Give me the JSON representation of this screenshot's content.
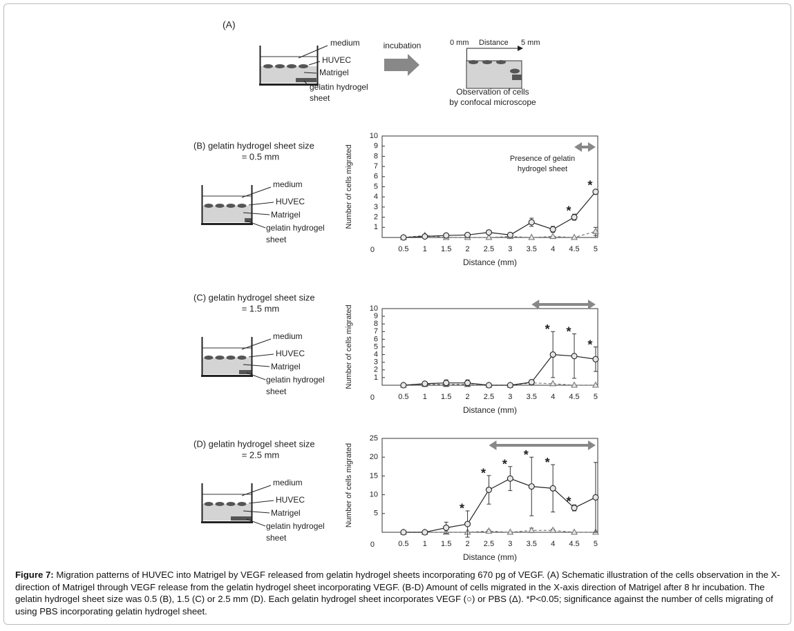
{
  "panel_A": {
    "label": "(A)",
    "beaker_labels": [
      "medium",
      "HUVEC",
      "Matrigel",
      "gelatin hydrogel",
      "sheet"
    ],
    "step": "incubation",
    "scale": [
      "0 mm",
      "Distance",
      "5 mm"
    ],
    "observation": [
      "Observation of cells",
      "by confocal microscope"
    ]
  },
  "schematics": [
    {
      "labels": [
        "medium",
        "HUVEC",
        "Matrigel",
        "gelatin hydrogel",
        "sheet"
      ]
    },
    {
      "labels": [
        "medium",
        "HUVEC",
        "Matrigel",
        "gelatin hydrogel",
        "sheet"
      ]
    },
    {
      "labels": [
        "medium",
        "HUVEC",
        "Matrigel",
        "gelatin hydrogel",
        "sheet"
      ]
    }
  ],
  "chart_data": [
    {
      "type": "line",
      "title": [
        "(B) gelatin hydrogel sheet size",
        "= 0.5 mm"
      ],
      "x_label": "Distance (mm)",
      "y_label": "Number of cells migrated",
      "x": [
        0.5,
        1,
        1.5,
        2,
        2.5,
        3,
        3.5,
        4,
        4.5,
        5
      ],
      "xlim": [
        0,
        5.05
      ],
      "xticks": [
        0.5,
        1,
        1.5,
        2,
        2.5,
        3,
        3.5,
        4,
        4.5,
        5
      ],
      "ylim": [
        0,
        10
      ],
      "yticks": [
        0,
        1,
        2,
        3,
        4,
        5,
        6,
        7,
        8,
        9,
        10
      ],
      "series": [
        {
          "color": "#222222",
          "marker": "circle",
          "linestyle": "solid",
          "values": [
            0,
            0.1,
            0.2,
            0.25,
            0.5,
            0.25,
            1.5,
            0.8,
            2.0,
            4.5
          ],
          "errors": [
            0,
            0.1,
            0.1,
            0.1,
            0.2,
            0.1,
            0.4,
            0.3,
            0.3,
            0.2
          ]
        },
        {
          "color": "#777777",
          "marker": "triangle",
          "linestyle": "dashed",
          "values": [
            0,
            0.2,
            0,
            0,
            0,
            0.1,
            0,
            0.1,
            0,
            0.6
          ],
          "errors": [
            0,
            0.1,
            0,
            0,
            0,
            0,
            0,
            0,
            0,
            0.4
          ]
        }
      ],
      "significance": {
        "label": "*",
        "x": [
          4.5,
          5
        ]
      },
      "sheet_range": [
        4.5,
        5
      ],
      "annotation": [
        "Presence of gelatin",
        "hydrogel sheet"
      ]
    },
    {
      "type": "line",
      "title": [
        "(C) gelatin hydrogel sheet size",
        "= 1.5 mm"
      ],
      "x_label": "Distance (mm)",
      "y_label": "Number of cells migrated",
      "x": [
        0.5,
        1,
        1.5,
        2,
        2.5,
        3,
        3.5,
        4,
        4.5,
        5
      ],
      "xlim": [
        0,
        5.05
      ],
      "xticks": [
        0.5,
        1,
        1.5,
        2,
        2.5,
        3,
        3.5,
        4,
        4.5,
        5
      ],
      "ylim": [
        0,
        10
      ],
      "yticks": [
        0,
        1,
        2,
        3,
        4,
        5,
        6,
        7,
        8,
        9,
        10
      ],
      "series": [
        {
          "color": "#222222",
          "marker": "circle",
          "linestyle": "solid",
          "values": [
            0,
            0.2,
            0.3,
            0.3,
            0,
            0,
            0.4,
            4.0,
            3.8,
            3.4
          ],
          "errors": [
            0,
            0.2,
            0.4,
            0.4,
            0,
            0,
            0.3,
            3.0,
            2.9,
            1.6
          ]
        },
        {
          "color": "#777777",
          "marker": "triangle",
          "linestyle": "dashed",
          "values": [
            0,
            0.1,
            0.1,
            0.1,
            0,
            0,
            0.3,
            0.2,
            0,
            0
          ],
          "errors": [
            0,
            0,
            0,
            0,
            0,
            0,
            0,
            0,
            0,
            0
          ]
        }
      ],
      "significance": {
        "label": "*",
        "x": [
          4,
          4.5,
          5
        ]
      },
      "sheet_range": [
        3.5,
        5
      ]
    },
    {
      "type": "line",
      "title": [
        "(D) gelatin hydrogel sheet size",
        "= 2.5 mm"
      ],
      "x_label": "Distance (mm)",
      "y_label": "Number of cells migrated",
      "x": [
        0.5,
        1,
        1.5,
        2,
        2.5,
        3,
        3.5,
        4,
        4.5,
        5
      ],
      "xlim": [
        0,
        5.05
      ],
      "xticks": [
        0.5,
        1,
        1.5,
        2,
        2.5,
        3,
        3.5,
        4,
        4.5,
        5
      ],
      "ylim": [
        0,
        25
      ],
      "yticks": [
        0,
        5,
        10,
        15,
        20,
        25
      ],
      "series": [
        {
          "color": "#222222",
          "marker": "circle",
          "linestyle": "solid",
          "values": [
            0,
            0,
            1.2,
            2.2,
            11.3,
            14.3,
            12.2,
            11.7,
            6.5,
            9.3
          ],
          "errors": [
            0,
            0,
            1.5,
            3.5,
            3.8,
            3.2,
            7.8,
            6.3,
            0.8,
            9.3
          ]
        },
        {
          "color": "#777777",
          "marker": "triangle",
          "linestyle": "dashed",
          "values": [
            0,
            0,
            0,
            0,
            0.3,
            0,
            0.5,
            0.5,
            0,
            0
          ],
          "errors": [
            0,
            0,
            0,
            0,
            0.3,
            0,
            0.6,
            0.3,
            0,
            0
          ]
        }
      ],
      "significance": {
        "label": "*",
        "x": [
          2,
          2.5,
          3,
          3.5,
          4,
          4.5
        ]
      },
      "sheet_range": [
        2.5,
        5
      ]
    }
  ],
  "caption": {
    "label": "Figure 7:",
    "text": " Migration patterns of HUVEC into Matrigel by VEGF released from gelatin hydrogel sheets incorporating 670 pg of VEGF. (A) Schematic illustration of the cells observation in the X-direction of Matrigel through VEGF release from the gelatin hydrogel sheet incorporating VEGF. (B-D) Amount of cells migrated in the X-axis direction of Matrigel after 8 hr incubation. The gelatin hydrogel sheet size was 0.5 (B), 1.5 (C) or 2.5 mm (D). Each gelatin hydrogel sheet incorporates VEGF (○) or PBS (Δ). *P<0.05; significance against the number of cells migrating of using PBS incorporating gelatin hydrogel sheet."
  }
}
